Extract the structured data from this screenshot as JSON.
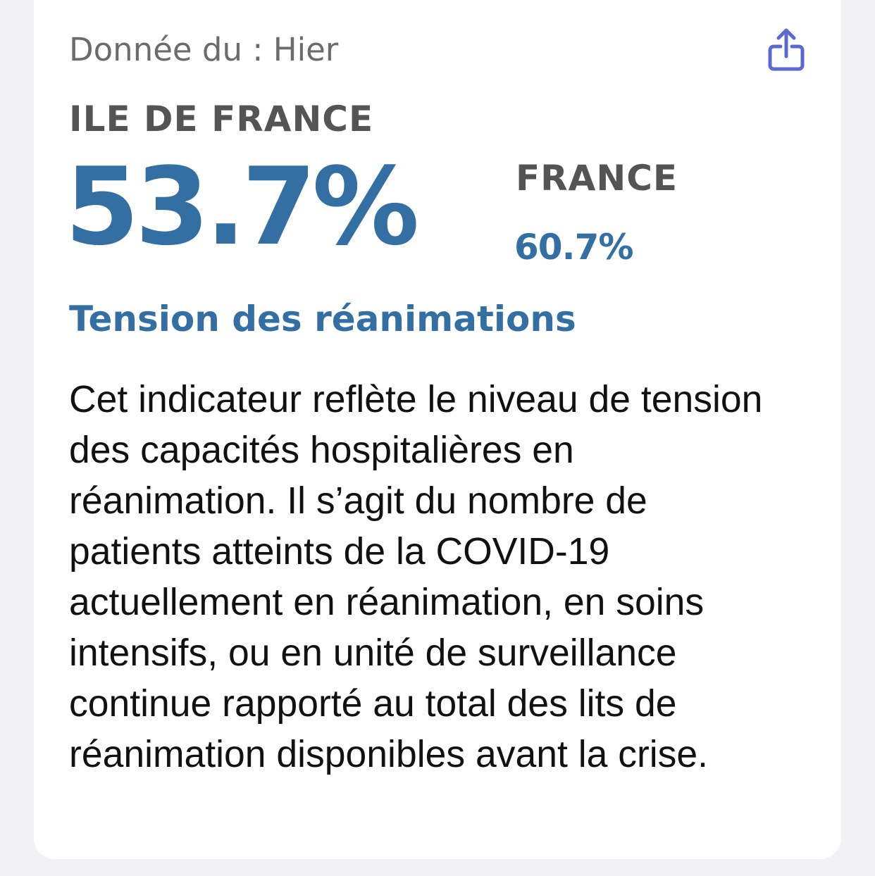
{
  "card": {
    "date_label": "Donnée du : Hier",
    "share_icon": "share-icon",
    "region": {
      "name": "ILE DE FRANCE",
      "value": "53.7%"
    },
    "comparison": {
      "label": "FRANCE",
      "value": "60.7%"
    },
    "indicator_title": "Tension des réanimations",
    "description": "Cet indicateur reflète le niveau de tension des capacités hospitalières en réanimation. Il s’agit du nombre de patients atteints de la COVID-19 actuellement en réanimation, en soins intensifs, ou en unité de surveillance continue rapporté au total des lits de réanimation disponibles avant la crise."
  },
  "colors": {
    "accent": "#346fa3",
    "share_icon": "#5b6ad0",
    "label_gray": "#545454",
    "date_gray": "#6b6b6b",
    "background": "#f2f2f6",
    "card": "#ffffff"
  }
}
